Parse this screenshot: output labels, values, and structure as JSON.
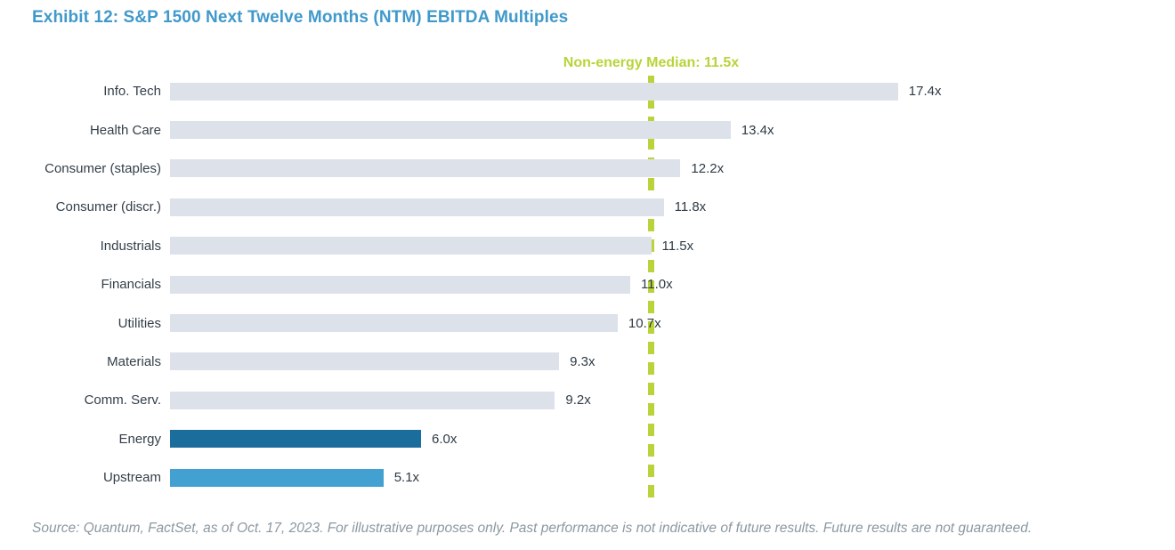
{
  "title": "Exhibit 12: S&P 1500 Next Twelve Months (NTM) EBITDA Multiples",
  "source": "Source: Quantum, FactSet, as of Oct. 17, 2023. For illustrative purposes only. Past performance is not indicative of future results. Future results are not guaranteed.",
  "colors": {
    "title_blue": "#4099cb",
    "bar_default": "#dce1ea",
    "bar_energy": "#1b6d9b",
    "bar_upstream": "#42a1d0",
    "median_green": "#b8d43a",
    "label_text": "#333f49",
    "source_text": "#8b98a1"
  },
  "chart_data": {
    "type": "bar",
    "orientation": "horizontal",
    "title": "S&P 1500 Next Twelve Months (NTM) EBITDA Multiples",
    "categories": [
      "Info. Tech",
      "Health Care",
      "Consumer (staples)",
      "Consumer (discr.)",
      "Industrials",
      "Financials",
      "Utilities",
      "Materials",
      "Comm. Serv.",
      "Energy",
      "Upstream"
    ],
    "values": [
      17.4,
      13.4,
      12.2,
      11.8,
      11.5,
      11.0,
      10.7,
      9.3,
      9.2,
      6.0,
      5.1
    ],
    "value_labels": [
      "17.4x",
      "13.4x",
      "12.2x",
      "11.8x",
      "11.5x",
      "11.0x",
      "10.7x",
      "9.3x",
      "9.2x",
      "6.0x",
      "5.1x"
    ],
    "bar_colors": [
      "#dce1ea",
      "#dce1ea",
      "#dce1ea",
      "#dce1ea",
      "#dce1ea",
      "#dce1ea",
      "#dce1ea",
      "#dce1ea",
      "#dce1ea",
      "#1b6d9b",
      "#42a1d0"
    ],
    "xlim": [
      0,
      19
    ],
    "grid": false,
    "legend": false,
    "annotation": {
      "text": "Non-energy Median: 11.5x",
      "value": 11.5,
      "style": "dashed-vertical-line",
      "color": "#b8d43a"
    }
  }
}
